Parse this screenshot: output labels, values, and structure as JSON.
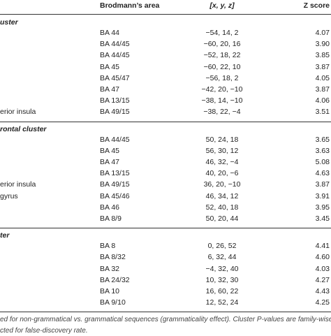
{
  "header": {
    "columns": [
      "Brodmann’s area",
      "[x, y, z]",
      "Z score"
    ]
  },
  "sections": [
    {
      "title": "uster",
      "rows": [
        {
          "area": "BA 44",
          "coords": "−54, 14, 2",
          "z": "4.07"
        },
        {
          "area": "BA 44/45",
          "coords": "−60, 20, 16",
          "z": "3.90"
        },
        {
          "area": "BA 44/45",
          "coords": "−52, 18, 22",
          "z": "3.85"
        },
        {
          "area": "BA 45",
          "coords": "−60, 22, 10",
          "z": "3.87"
        },
        {
          "area": "BA 45/47",
          "coords": "−56, 18, 2",
          "z": "4.05"
        },
        {
          "area": "BA 47",
          "coords": "−42, 20, −10",
          "z": "3.87"
        },
        {
          "area": "BA 13/15",
          "coords": "−38, 14, −10",
          "z": "4.06"
        },
        {
          "region": "erior insula",
          "area": "BA 49/15",
          "coords": "−38, 22, −4",
          "z": "3.51"
        }
      ]
    },
    {
      "title": "rontal cluster",
      "rows": [
        {
          "area": "BA 44/45",
          "coords": "50, 24, 18",
          "z": "3.65"
        },
        {
          "area": "BA 45",
          "coords": "56, 30, 12",
          "z": "3.63"
        },
        {
          "area": "BA 47",
          "coords": "46, 32, −4",
          "z": "5.08"
        },
        {
          "area": "BA 13/15",
          "coords": "40, 20, −6",
          "z": "4.63"
        },
        {
          "region": "erior insula",
          "area": "BA 49/15",
          "coords": "36, 20, −10",
          "z": "3.87"
        },
        {
          "region": "gyrus",
          "area": "BA 45/46",
          "coords": "46, 34, 12",
          "z": "3.91"
        },
        {
          "area": "BA 46",
          "coords": "52, 40, 18",
          "z": "3.95"
        },
        {
          "area": "BA 8/9",
          "coords": "50, 20, 44",
          "z": "3.45"
        }
      ]
    },
    {
      "title": "ter",
      "rows": [
        {
          "area": "BA 8",
          "coords": "0, 26, 52",
          "z": "4.41"
        },
        {
          "area": "BA 8/32",
          "coords": "6, 32, 44",
          "z": "4.60"
        },
        {
          "area": "BA 32",
          "coords": "−4, 32, 40",
          "z": "4.03"
        },
        {
          "area": "BA 24/32",
          "coords": "10, 32, 30",
          "z": "4.27"
        },
        {
          "area": "BA 10",
          "coords": "16, 60, 22",
          "z": "4.43"
        },
        {
          "area": "BA 9/10",
          "coords": "12, 52, 24",
          "z": "4.25"
        }
      ]
    }
  ],
  "footnote": [
    "ed for non-grammatical vs. grammatical sequences (grammaticality effect). Cluster P-values are family-wise em",
    "cted for false-discovery rate."
  ]
}
